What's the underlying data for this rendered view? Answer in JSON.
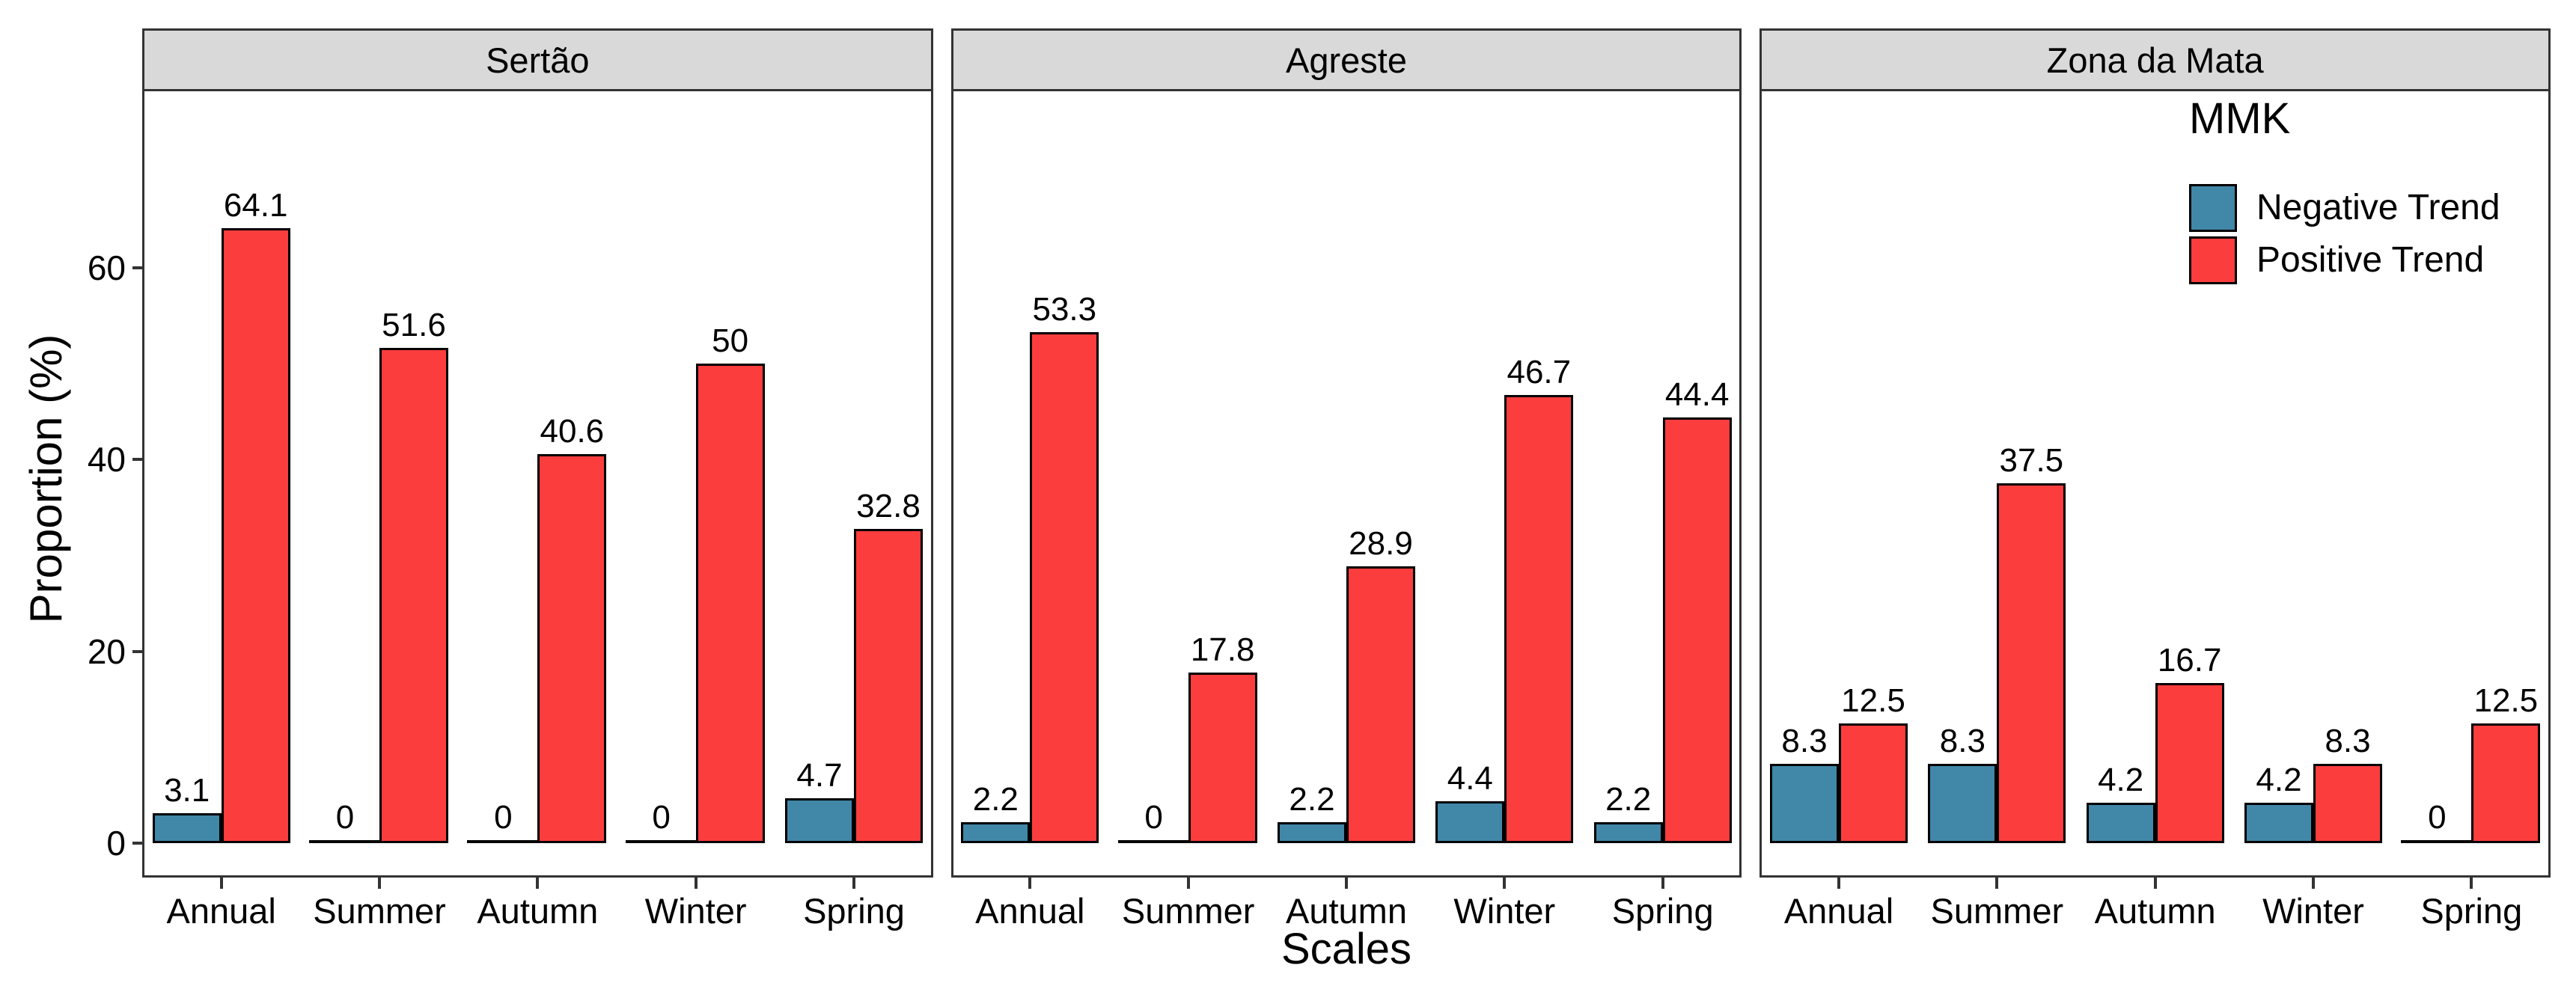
{
  "figure": {
    "y_axis_title": "Proportion (%)",
    "x_axis_title": "Scales",
    "y_tick_labels": [
      "0",
      "20",
      "40",
      "60"
    ]
  },
  "legend": {
    "title": "MMK",
    "items": [
      {
        "label": "Negative Trend",
        "color": "#4187A8"
      },
      {
        "label": "Positive Trend",
        "color": "#FC3D3D"
      }
    ]
  },
  "chart_data": {
    "type": "bar",
    "title": "",
    "xlabel": "Scales",
    "ylabel": "Proportion (%)",
    "ylim": [
      0,
      78
    ],
    "y_ticks": [
      0,
      20,
      40,
      60
    ],
    "grid": false,
    "legend_title": "MMK",
    "legend_position": "top-right inside third facet",
    "facet_titles": [
      "Sertão",
      "Agreste",
      "Zona da Mata"
    ],
    "categories": [
      "Annual",
      "Summer",
      "Autumn",
      "Winter",
      "Spring"
    ],
    "series_colors": {
      "Negative Trend": "#4187A8",
      "Positive Trend": "#FC3D3D"
    },
    "bar_border_color": "#000000",
    "panel_strip_bg": "#D9D9D9",
    "panel_border_color": "#333333",
    "panels": [
      {
        "title": "Sertão",
        "series": [
          {
            "name": "Negative Trend",
            "values": [
              3.1,
              0,
              0,
              0,
              4.7
            ]
          },
          {
            "name": "Positive Trend",
            "values": [
              64.1,
              51.6,
              40.6,
              50,
              32.8
            ]
          }
        ]
      },
      {
        "title": "Agreste",
        "series": [
          {
            "name": "Negative Trend",
            "values": [
              2.2,
              0,
              2.2,
              4.4,
              2.2
            ]
          },
          {
            "name": "Positive Trend",
            "values": [
              53.3,
              17.8,
              28.9,
              46.7,
              44.4
            ]
          }
        ]
      },
      {
        "title": "Zona da Mata",
        "series": [
          {
            "name": "Negative Trend",
            "values": [
              8.3,
              8.3,
              4.2,
              4.2,
              0
            ]
          },
          {
            "name": "Positive Trend",
            "values": [
              12.5,
              37.5,
              16.7,
              8.3,
              12.5
            ]
          }
        ]
      }
    ]
  }
}
